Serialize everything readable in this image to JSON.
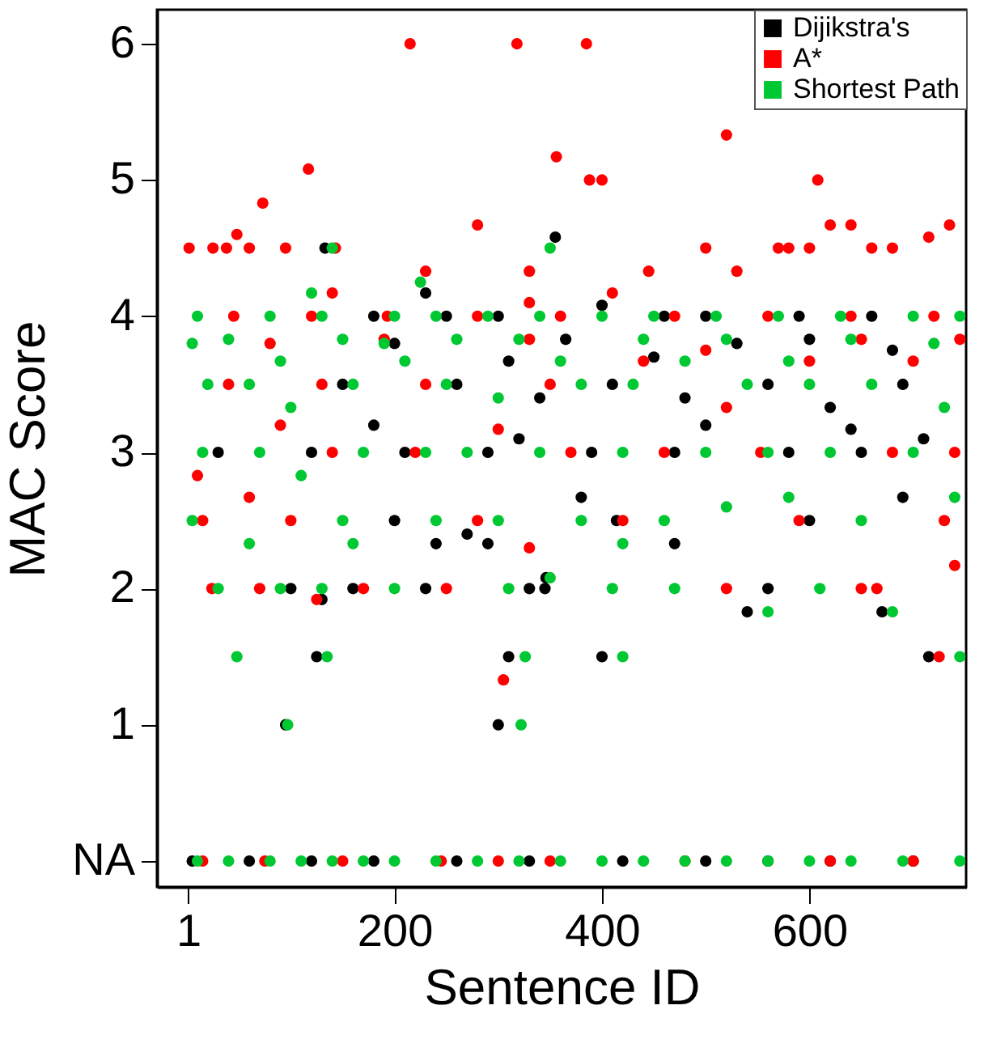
{
  "chart_data": {
    "type": "scatter",
    "xlabel": "Sentence ID",
    "ylabel": "MAC Score",
    "xlim": [
      -29,
      751
    ],
    "ylim": [
      -0.19,
      6.25
    ],
    "xticks": [
      1,
      200,
      400,
      600
    ],
    "yticks": [
      {
        "value": 0,
        "label": "NA"
      },
      1,
      2,
      3,
      4,
      5,
      6
    ],
    "grid": false,
    "legend": "top right",
    "marker": "circle",
    "series": [
      {
        "name": "Dijikstra's",
        "color": "#000000",
        "x": [
          5,
          60,
          120,
          180,
          260,
          330,
          420,
          500,
          560,
          620,
          700,
          95,
          300,
          125,
          310,
          400,
          715,
          130,
          540,
          670,
          100,
          160,
          230,
          330,
          345,
          560,
          240,
          346,
          200,
          414,
          600,
          690,
          270,
          290,
          470,
          380,
          30,
          120,
          210,
          290,
          390,
          470,
          580,
          650,
          180,
          320,
          500,
          640,
          710,
          150,
          260,
          340,
          410,
          480,
          560,
          620,
          690,
          200,
          310,
          365,
          450,
          530,
          600,
          680,
          180,
          250,
          300,
          400,
          460,
          500,
          590,
          660,
          355,
          133,
          230
        ],
        "values": [
          0,
          0,
          0,
          0,
          0,
          0,
          0,
          0,
          0,
          0,
          0,
          1,
          1,
          1.5,
          1.5,
          1.5,
          1.5,
          1.92,
          1.83,
          1.83,
          2,
          2,
          2,
          2,
          2,
          2,
          2.33,
          2.08,
          2.5,
          2.5,
          2.5,
          2.67,
          2.4,
          2.33,
          2.33,
          2.67,
          3,
          3,
          3,
          3,
          3,
          3,
          3,
          3,
          3.2,
          3.1,
          3.2,
          3.17,
          3.1,
          3.5,
          3.5,
          3.4,
          3.5,
          3.4,
          3.5,
          3.33,
          3.5,
          3.8,
          3.67,
          3.83,
          3.7,
          3.8,
          3.83,
          3.75,
          4,
          4,
          4,
          4.08,
          4,
          4,
          4,
          4,
          4.58,
          4.5,
          4.17
        ]
      },
      {
        "name": "A*",
        "color": "#ff0000",
        "x": [
          215,
          318,
          385,
          117,
          356,
          520,
          608,
          388,
          400,
          73,
          48,
          38,
          2,
          25,
          60,
          95,
          143,
          620,
          640,
          735,
          715,
          500,
          445,
          530,
          570,
          580,
          600,
          660,
          680,
          230,
          280,
          330,
          410,
          15,
          75,
          150,
          245,
          300,
          350,
          480,
          620,
          700,
          305,
          725,
          125,
          24,
          70,
          170,
          250,
          520,
          650,
          665,
          740,
          15,
          100,
          280,
          420,
          590,
          730,
          330,
          10,
          60,
          140,
          220,
          370,
          460,
          553,
          680,
          740,
          90,
          300,
          520,
          40,
          130,
          230,
          350,
          440,
          600,
          700,
          80,
          190,
          330,
          500,
          650,
          745,
          45,
          120,
          193,
          280,
          360,
          470,
          560,
          640,
          720,
          140,
          330
        ],
        "values": [
          6,
          6,
          6,
          5.08,
          5.17,
          5.33,
          5,
          5,
          5,
          4.83,
          4.6,
          4.5,
          4.5,
          4.5,
          4.5,
          4.5,
          4.5,
          4.67,
          4.67,
          4.67,
          4.58,
          4.5,
          4.33,
          4.33,
          4.5,
          4.5,
          4.5,
          4.5,
          4.5,
          4.33,
          4.67,
          4.33,
          4.17,
          0,
          0,
          0,
          0,
          0,
          0,
          0,
          0,
          0,
          1.33,
          1.5,
          1.92,
          2,
          2,
          2,
          2,
          2,
          2,
          2,
          2.17,
          2.5,
          2.5,
          2.5,
          2.5,
          2.5,
          2.5,
          2.3,
          2.83,
          2.67,
          3,
          3,
          3,
          3,
          3,
          3,
          3,
          3.2,
          3.17,
          3.33,
          3.5,
          3.5,
          3.5,
          3.5,
          3.67,
          3.67,
          3.67,
          3.8,
          3.83,
          3.83,
          3.75,
          3.83,
          3.83,
          4,
          4,
          4,
          4,
          4,
          4,
          4,
          4,
          4,
          4.17,
          4.1
        ]
      },
      {
        "name": "Shortest Path",
        "color": "#00c832",
        "x": [
          10,
          40,
          80,
          110,
          140,
          170,
          200,
          240,
          280,
          320,
          360,
          400,
          440,
          480,
          520,
          560,
          600,
          640,
          690,
          745,
          97,
          322,
          48,
          135,
          326,
          420,
          745,
          680,
          560,
          30,
          90,
          130,
          200,
          310,
          410,
          470,
          610,
          350,
          160,
          420,
          5,
          60,
          150,
          240,
          300,
          380,
          460,
          520,
          580,
          650,
          740,
          15,
          70,
          110,
          170,
          230,
          270,
          340,
          420,
          500,
          560,
          620,
          700,
          20,
          60,
          100,
          160,
          210,
          250,
          300,
          380,
          430,
          480,
          540,
          600,
          660,
          730,
          5,
          40,
          90,
          150,
          190,
          260,
          320,
          360,
          440,
          520,
          580,
          640,
          720,
          10,
          80,
          130,
          200,
          240,
          290,
          340,
          400,
          450,
          510,
          570,
          630,
          700,
          745,
          140,
          350,
          120,
          225
        ],
        "values": [
          0,
          0,
          0,
          0,
          0,
          0,
          0,
          0,
          0,
          0,
          0,
          0,
          0,
          0,
          0,
          0,
          0,
          0,
          0,
          0,
          1,
          1,
          1.5,
          1.5,
          1.5,
          1.5,
          1.5,
          1.83,
          1.83,
          2,
          2,
          2,
          2,
          2,
          2,
          2,
          2,
          2.08,
          2.33,
          2.33,
          2.5,
          2.33,
          2.5,
          2.5,
          2.5,
          2.5,
          2.5,
          2.6,
          2.67,
          2.5,
          2.67,
          3,
          3,
          2.83,
          3,
          3,
          3,
          3,
          3,
          3,
          3,
          3,
          3,
          3.5,
          3.5,
          3.33,
          3.5,
          3.67,
          3.5,
          3.4,
          3.5,
          3.5,
          3.67,
          3.5,
          3.5,
          3.5,
          3.33,
          3.8,
          3.83,
          3.67,
          3.83,
          3.8,
          3.83,
          3.83,
          3.67,
          3.83,
          3.83,
          3.67,
          3.83,
          3.8,
          4,
          4,
          4,
          4,
          4,
          4,
          4,
          4,
          4,
          4,
          4,
          4,
          4,
          4,
          4.5,
          4.5,
          4.17,
          4.25
        ]
      }
    ]
  }
}
